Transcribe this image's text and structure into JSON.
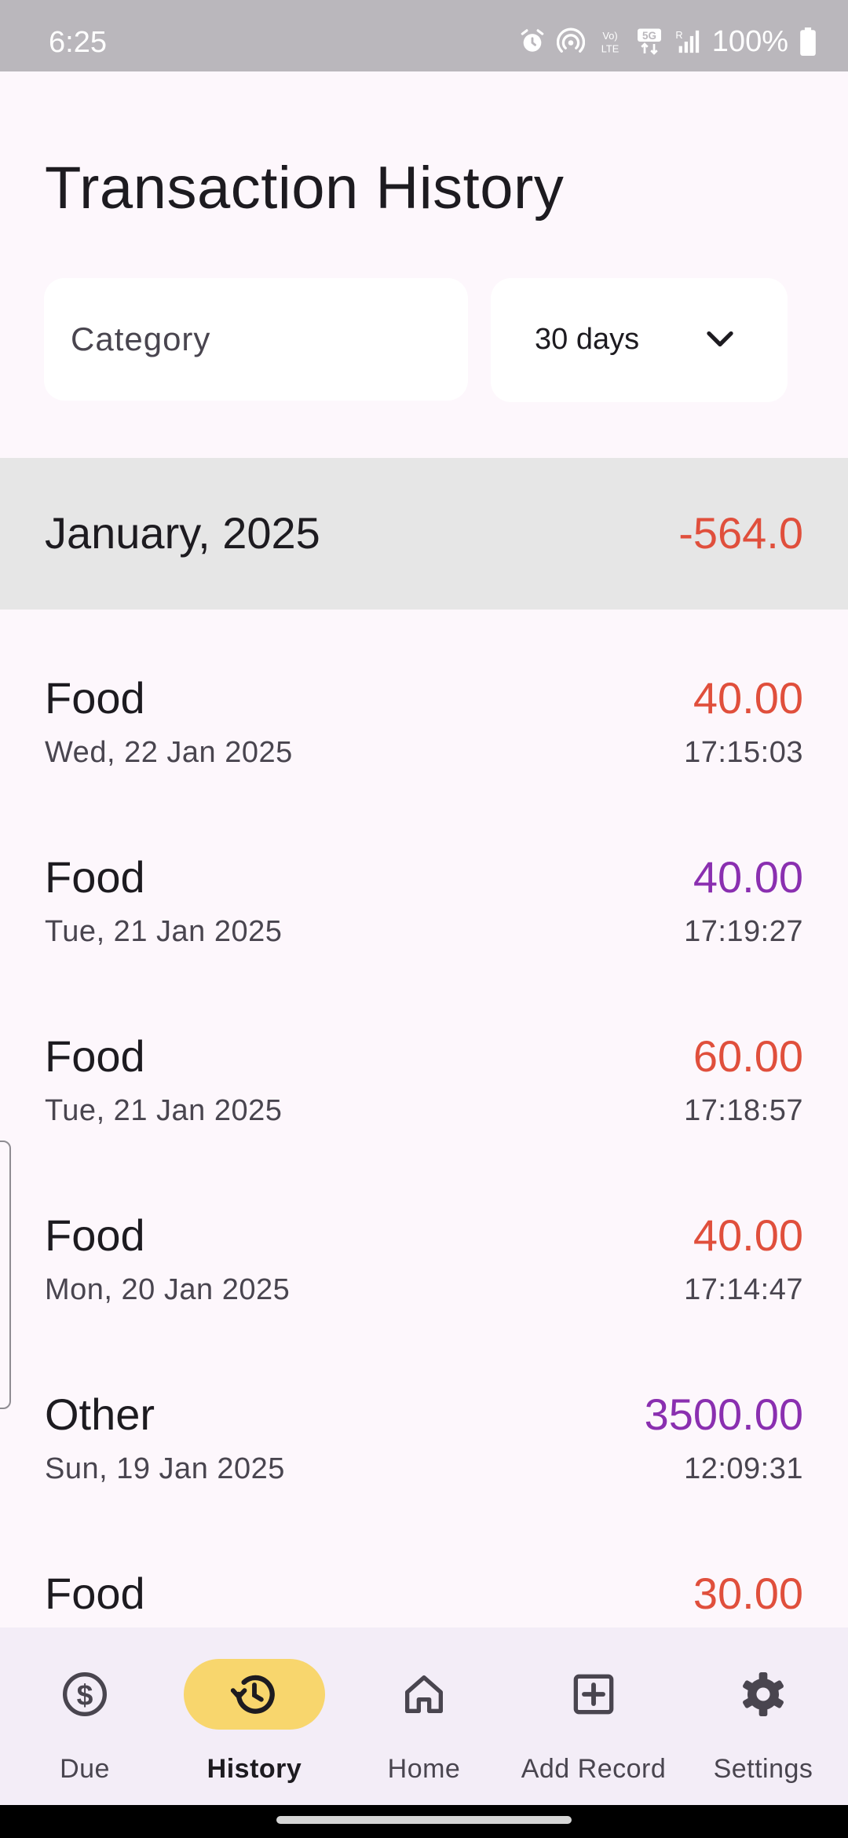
{
  "status_bar": {
    "time": "6:25",
    "battery": "100%",
    "icons": [
      "alarm-icon",
      "hotspot-icon",
      "volte-icon",
      "5g-icon",
      "signal-icon",
      "battery-icon"
    ]
  },
  "page": {
    "title": "Transaction History"
  },
  "filters": {
    "category_placeholder": "Category",
    "category_value": "",
    "range_value": "30 days"
  },
  "month_group": {
    "label": "January, 2025",
    "total": "-564.0",
    "total_color": "#e04f3c"
  },
  "colors": {
    "expense": "#e04f3c",
    "income": "#8a2fb0",
    "nav_active": "#f8d66d"
  },
  "transactions": [
    {
      "category": "Food",
      "date": "Wed, 22 Jan 2025",
      "amount": "40.00",
      "time": "17:15:03",
      "type": "expense"
    },
    {
      "category": "Food",
      "date": "Tue, 21 Jan 2025",
      "amount": "40.00",
      "time": "17:19:27",
      "type": "income"
    },
    {
      "category": "Food",
      "date": "Tue, 21 Jan 2025",
      "amount": "60.00",
      "time": "17:18:57",
      "type": "expense"
    },
    {
      "category": "Food",
      "date": "Mon, 20 Jan 2025",
      "amount": "40.00",
      "time": "17:14:47",
      "type": "expense"
    },
    {
      "category": "Other",
      "date": "Sun, 19 Jan 2025",
      "amount": "3500.00",
      "time": "12:09:31",
      "type": "income"
    },
    {
      "category": "Food",
      "date": "",
      "amount": "30.00",
      "time": "",
      "type": "expense"
    }
  ],
  "bottom_nav": {
    "items": [
      {
        "label": "Due",
        "icon": "dollar-circle-icon",
        "active": false
      },
      {
        "label": "History",
        "icon": "history-icon",
        "active": true
      },
      {
        "label": "Home",
        "icon": "home-icon",
        "active": false
      },
      {
        "label": "Add Record",
        "icon": "add-box-icon",
        "active": false
      },
      {
        "label": "Settings",
        "icon": "gear-icon",
        "active": false
      }
    ]
  }
}
